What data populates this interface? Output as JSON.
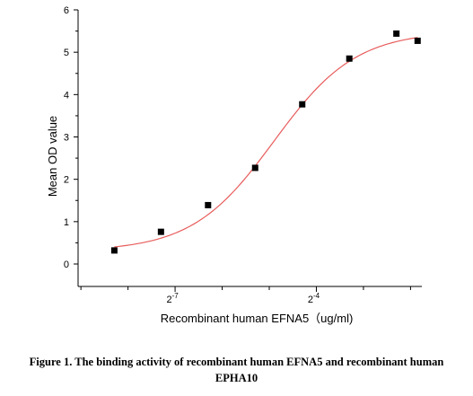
{
  "chart_data": {
    "type": "scatter",
    "title": "",
    "xlabel": "Recombinant human EFNA5（ug/ml)",
    "ylabel": "Mean OD value",
    "x_scale": "log2",
    "x_ticks": [
      {
        "exponent": -7,
        "base": "2",
        "sup": "-7"
      },
      {
        "exponent": -4,
        "base": "2",
        "sup": "-4"
      }
    ],
    "xlim_log2": [
      -9.06,
      -1.76
    ],
    "ylim": [
      0,
      6
    ],
    "y_ticks": [
      "0",
      "1",
      "2",
      "3",
      "4",
      "5",
      "6"
    ],
    "grid": false,
    "legend": "none",
    "series": [
      {
        "marker": "square",
        "color": "#000000",
        "x_log2": [
          -8.29,
          -7.3,
          -6.3,
          -5.3,
          -4.3,
          -3.3,
          -2.3,
          -1.85
        ],
        "values": [
          0.32,
          0.76,
          1.39,
          2.27,
          3.77,
          4.85,
          5.44,
          5.27
        ]
      }
    ],
    "fit": {
      "type": "4PL",
      "color": "#e85c5c",
      "bottom": 0.3,
      "top": 5.5,
      "ec50_log2": -4.9,
      "slope_log2": 0.87,
      "x_range_log2": [
        -8.29,
        -1.85
      ]
    }
  },
  "caption": {
    "line1": "Figure 1. The binding activity of recombinant human EFNA5 and recombinant human",
    "line2": "EPHA10"
  }
}
